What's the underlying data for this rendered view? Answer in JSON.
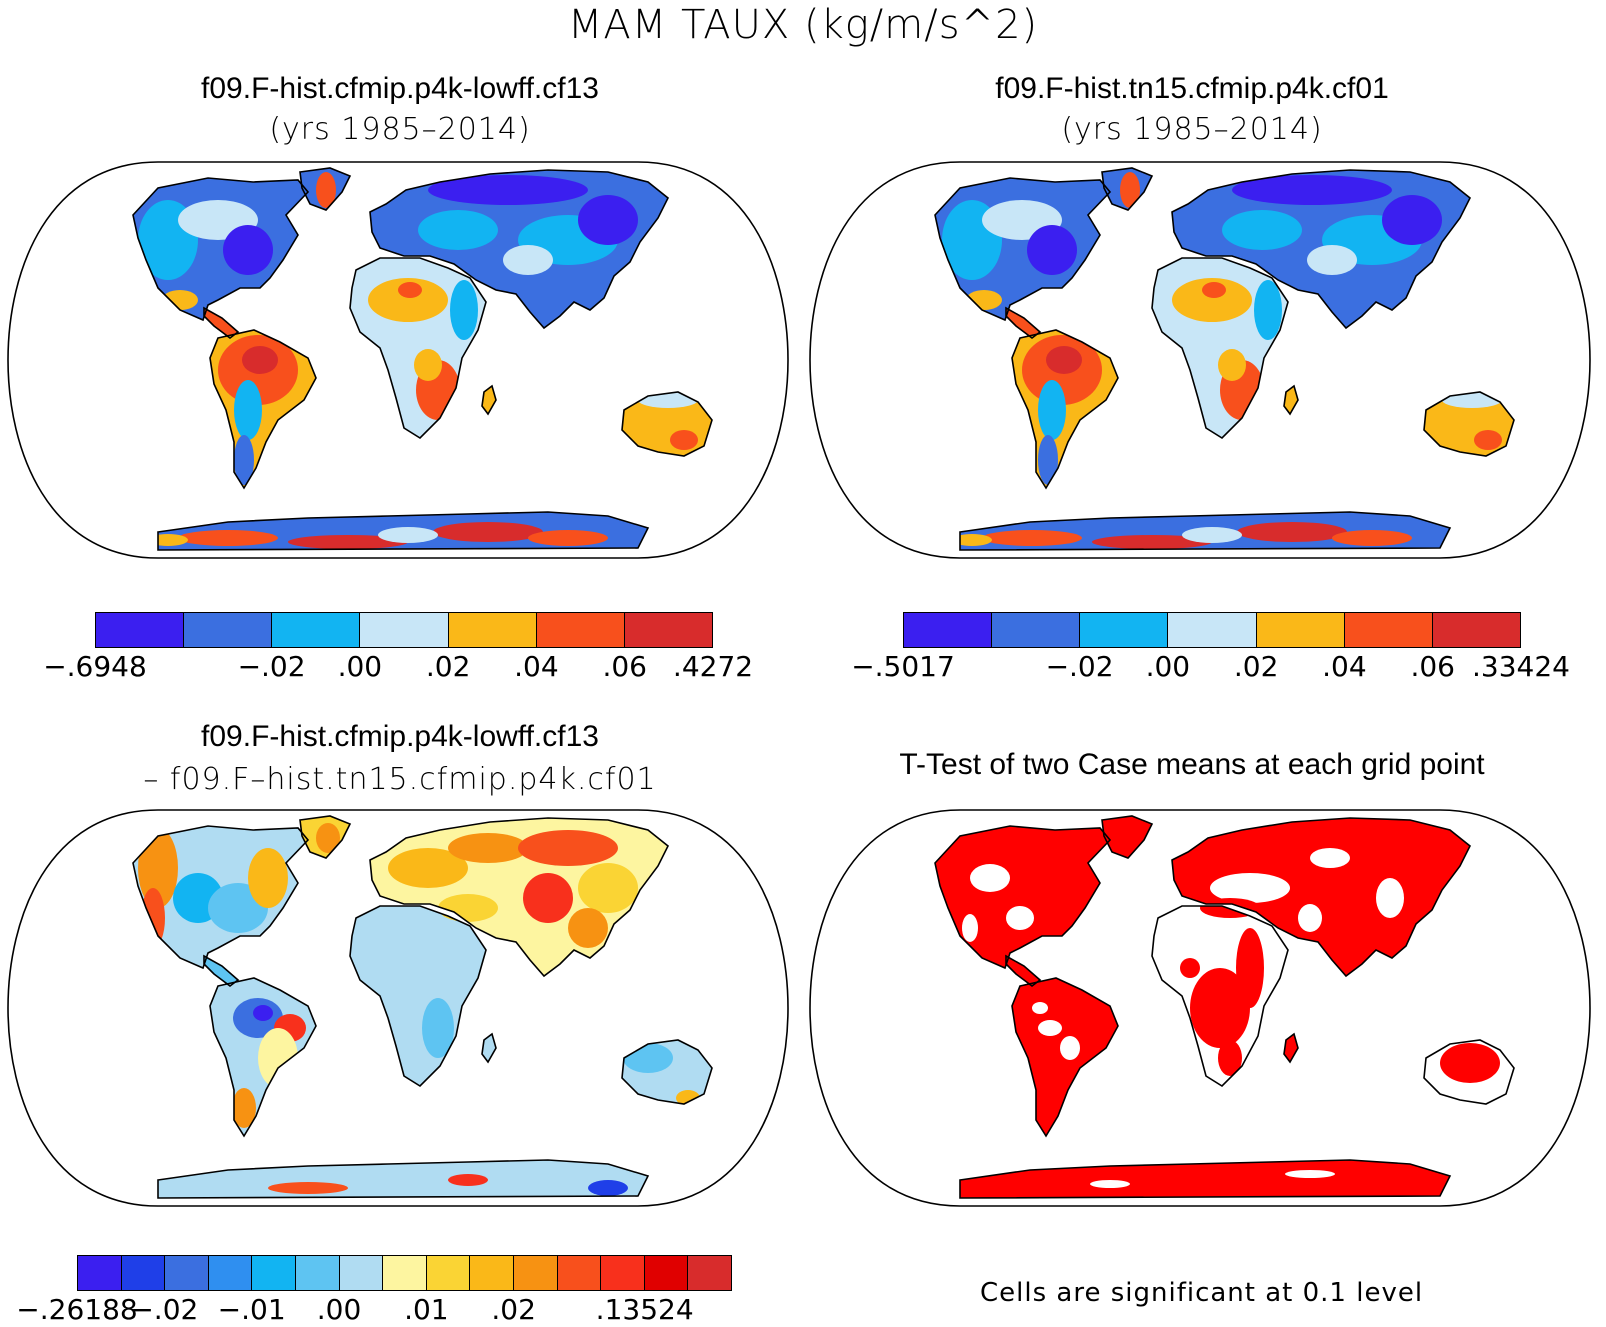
{
  "figure": {
    "title": "MAM TAUX (kg/m/s^2)"
  },
  "panels": [
    {
      "title": "f09.F-hist.cfmip.p4k-lowff.cf13",
      "subtitle": "(yrs 1985–2014)",
      "colorbar": {
        "colors": [
          "#3b1ff0",
          "#3b6fe0",
          "#12b4f2",
          "#c8e6f7",
          "#fab818",
          "#f8501c",
          "#d82c2c"
        ],
        "labels": [
          "-.6948",
          "",
          "-.02",
          ".00",
          ".02",
          ".04",
          ".06",
          ".4272"
        ]
      }
    },
    {
      "title": "f09.F-hist.tn15.cfmip.p4k.cf01",
      "subtitle": "(yrs 1985–2014)",
      "colorbar": {
        "colors": [
          "#3b1ff0",
          "#3b6fe0",
          "#12b4f2",
          "#c8e6f7",
          "#fab818",
          "#f8501c",
          "#d82c2c"
        ],
        "labels": [
          "-.5017",
          "",
          "-.02",
          ".00",
          ".02",
          ".04",
          ".06",
          ".33424"
        ]
      }
    },
    {
      "title": "f09.F-hist.cfmip.p4k-lowff.cf13",
      "subtitle": "– f09.F–hist.tn15.cfmip.p4k.cf01",
      "colorbar": {
        "colors": [
          "#3b1ff0",
          "#1f3fe8",
          "#3b6fe0",
          "#2f8ff0",
          "#12b4f2",
          "#5ec4f2",
          "#b0dcf2",
          "#fdf5a0",
          "#fad434",
          "#fab818",
          "#f79212",
          "#f8501c",
          "#f8301c",
          "#e00000",
          "#d82c2c"
        ],
        "labels": [
          "-.26188",
          "",
          "-.02",
          "",
          "-.01",
          "",
          ".00",
          "",
          ".01",
          "",
          ".02",
          "",
          "",
          ".13524"
        ]
      }
    },
    {
      "title": "T-Test of two Case means at each grid point",
      "note": "Cells are significant at 0.1 level",
      "significant_color": "#ff0000"
    }
  ]
}
